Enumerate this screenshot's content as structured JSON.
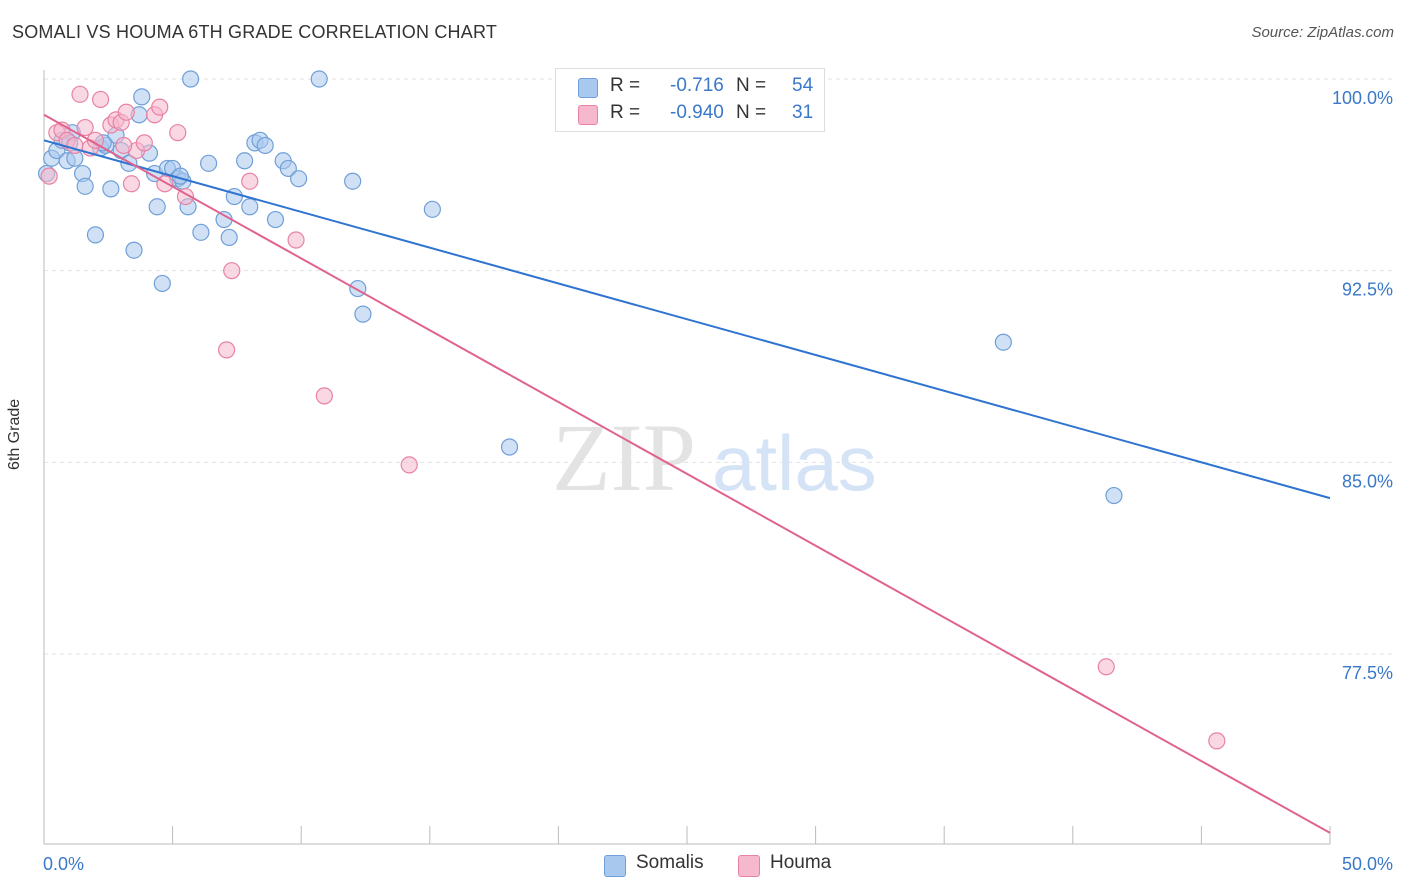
{
  "title": "SOMALI VS HOUMA 6TH GRADE CORRELATION CHART",
  "source": "Source: ZipAtlas.com",
  "watermark": {
    "zip": "ZIP",
    "atlas": "atlas"
  },
  "legend_stats": [
    {
      "r_label": "R =",
      "r_value": "-0.716",
      "n_label": "N =",
      "n_value": "54",
      "color": "#a9c8ee",
      "border": "#6f9fd8"
    },
    {
      "r_label": "R =",
      "r_value": "-0.940",
      "n_label": "N =",
      "n_value": "31",
      "color": "#f6b8cc",
      "border": "#e882a4"
    }
  ],
  "chart_data": {
    "type": "scatter",
    "title": "SOMALI VS HOUMA 6TH GRADE CORRELATION CHART",
    "xlabel": "",
    "ylabel": "6th Grade",
    "xlim": [
      0,
      50
    ],
    "ylim": [
      70,
      101
    ],
    "x_tick_labels": [
      {
        "value": 0,
        "label": "0.0%"
      },
      {
        "value": 50,
        "label": "50.0%"
      }
    ],
    "y_tick_labels": [
      {
        "value": 100,
        "label": "100.0%"
      },
      {
        "value": 92.5,
        "label": "92.5%"
      },
      {
        "value": 85,
        "label": "85.0%"
      },
      {
        "value": 77.5,
        "label": "77.5%"
      }
    ],
    "legend_position": "bottom-center",
    "series": [
      {
        "name": "Somalis",
        "color": "#a9c8ee",
        "line_color": "#2f74d0",
        "trend": {
          "x": [
            0,
            50
          ],
          "y": [
            97.6,
            83.6
          ]
        },
        "points": [
          [
            0.1,
            96.3
          ],
          [
            0.3,
            96.9
          ],
          [
            0.5,
            97.2
          ],
          [
            0.7,
            97.6
          ],
          [
            0.9,
            96.8
          ],
          [
            1.1,
            97.9
          ],
          [
            1.2,
            96.9
          ],
          [
            1.5,
            96.3
          ],
          [
            1.6,
            95.8
          ],
          [
            2.0,
            93.9
          ],
          [
            2.2,
            97.3
          ],
          [
            2.4,
            97.4
          ],
          [
            2.6,
            95.7
          ],
          [
            2.8,
            97.8
          ],
          [
            3.0,
            97.2
          ],
          [
            3.3,
            96.7
          ],
          [
            3.5,
            93.3
          ],
          [
            3.7,
            98.6
          ],
          [
            3.8,
            99.3
          ],
          [
            4.1,
            97.1
          ],
          [
            4.3,
            96.3
          ],
          [
            4.4,
            95.0
          ],
          [
            4.6,
            92.0
          ],
          [
            4.8,
            96.5
          ],
          [
            5.0,
            96.5
          ],
          [
            5.2,
            96.1
          ],
          [
            5.4,
            96.0
          ],
          [
            5.6,
            95.0
          ],
          [
            5.7,
            100.0
          ],
          [
            6.1,
            94.0
          ],
          [
            6.4,
            96.7
          ],
          [
            7.0,
            94.5
          ],
          [
            7.2,
            93.8
          ],
          [
            7.4,
            95.4
          ],
          [
            7.8,
            96.8
          ],
          [
            8.0,
            95.0
          ],
          [
            8.2,
            97.5
          ],
          [
            8.4,
            97.6
          ],
          [
            8.6,
            97.4
          ],
          [
            9.0,
            94.5
          ],
          [
            9.3,
            96.8
          ],
          [
            9.5,
            96.5
          ],
          [
            9.9,
            96.1
          ],
          [
            10.7,
            100.0
          ],
          [
            12.0,
            96.0
          ],
          [
            12.2,
            91.8
          ],
          [
            12.4,
            90.8
          ],
          [
            15.1,
            94.9
          ],
          [
            18.1,
            85.6
          ],
          [
            37.3,
            89.7
          ],
          [
            41.6,
            83.7
          ],
          [
            5.3,
            96.2
          ],
          [
            2.3,
            97.5
          ],
          [
            1.0,
            97.5
          ]
        ]
      },
      {
        "name": "Houma",
        "color": "#f6b8cc",
        "line_color": "#e0638f",
        "trend": {
          "x": [
            0,
            50
          ],
          "y": [
            98.6,
            70.5
          ]
        },
        "points": [
          [
            0.2,
            96.2
          ],
          [
            0.5,
            97.9
          ],
          [
            0.7,
            98.0
          ],
          [
            0.9,
            97.6
          ],
          [
            1.2,
            97.4
          ],
          [
            1.4,
            99.4
          ],
          [
            1.6,
            98.1
          ],
          [
            1.8,
            97.3
          ],
          [
            2.0,
            97.6
          ],
          [
            2.2,
            99.2
          ],
          [
            2.6,
            98.2
          ],
          [
            2.8,
            98.4
          ],
          [
            3.0,
            98.3
          ],
          [
            3.2,
            98.7
          ],
          [
            3.4,
            95.9
          ],
          [
            3.6,
            97.2
          ],
          [
            3.9,
            97.5
          ],
          [
            4.3,
            98.6
          ],
          [
            4.5,
            98.9
          ],
          [
            4.7,
            95.9
          ],
          [
            5.2,
            97.9
          ],
          [
            5.5,
            95.4
          ],
          [
            7.1,
            89.4
          ],
          [
            7.3,
            92.5
          ],
          [
            8.0,
            96.0
          ],
          [
            9.8,
            93.7
          ],
          [
            10.9,
            87.6
          ],
          [
            14.2,
            84.9
          ],
          [
            41.3,
            77.0
          ],
          [
            45.6,
            74.1
          ],
          [
            3.1,
            97.4
          ]
        ]
      }
    ]
  }
}
